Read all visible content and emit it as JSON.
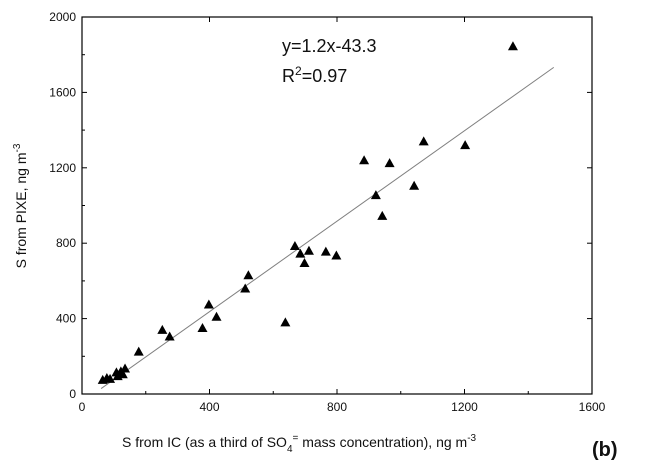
{
  "chart_data": {
    "type": "scatter",
    "xlabel": "S from IC (as a third of SO4= mass concentration), ng m-3",
    "ylabel": "S from PIXE, ng m-3",
    "xlim": [
      0,
      1600
    ],
    "ylim": [
      0,
      2000
    ],
    "xticks": [
      0,
      400,
      800,
      1200,
      1600
    ],
    "yticks": [
      0,
      400,
      800,
      1200,
      1600,
      2000
    ],
    "marker": "triangle",
    "marker_color": "#000000",
    "fit_line": {
      "slope": 1.2,
      "intercept": -43.3,
      "x_range": [
        60,
        1480
      ],
      "color": "#808080"
    },
    "equation_text": "y=1.2x-43.3",
    "r2_text": "R2=0.97",
    "panel_label": "(b)",
    "points": [
      {
        "x": 65,
        "y": 75
      },
      {
        "x": 78,
        "y": 85
      },
      {
        "x": 88,
        "y": 80
      },
      {
        "x": 108,
        "y": 115
      },
      {
        "x": 112,
        "y": 95
      },
      {
        "x": 122,
        "y": 120
      },
      {
        "x": 128,
        "y": 105
      },
      {
        "x": 135,
        "y": 135
      },
      {
        "x": 178,
        "y": 225
      },
      {
        "x": 252,
        "y": 340
      },
      {
        "x": 275,
        "y": 305
      },
      {
        "x": 378,
        "y": 350
      },
      {
        "x": 398,
        "y": 475
      },
      {
        "x": 422,
        "y": 410
      },
      {
        "x": 512,
        "y": 560
      },
      {
        "x": 522,
        "y": 630
      },
      {
        "x": 638,
        "y": 380
      },
      {
        "x": 668,
        "y": 785
      },
      {
        "x": 685,
        "y": 745
      },
      {
        "x": 698,
        "y": 695
      },
      {
        "x": 712,
        "y": 760
      },
      {
        "x": 765,
        "y": 755
      },
      {
        "x": 798,
        "y": 735
      },
      {
        "x": 885,
        "y": 1240
      },
      {
        "x": 922,
        "y": 1055
      },
      {
        "x": 942,
        "y": 945
      },
      {
        "x": 965,
        "y": 1225
      },
      {
        "x": 1042,
        "y": 1105
      },
      {
        "x": 1072,
        "y": 1340
      },
      {
        "x": 1202,
        "y": 1320
      },
      {
        "x": 1352,
        "y": 1845
      }
    ]
  }
}
